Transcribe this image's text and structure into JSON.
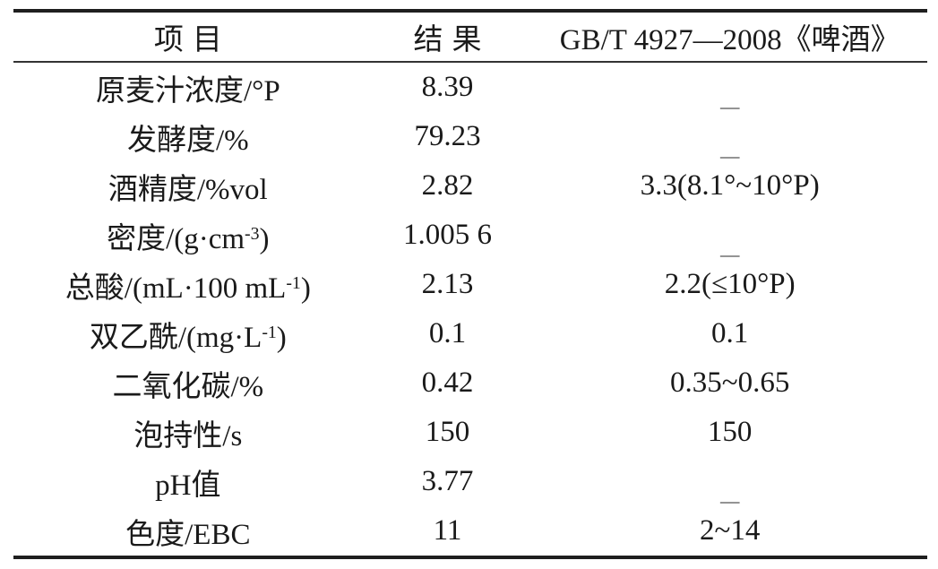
{
  "table": {
    "columns": [
      {
        "label": "项目"
      },
      {
        "label": "结果"
      },
      {
        "label": "GB/T 4927—2008《啤酒》"
      }
    ],
    "rows": [
      {
        "item_main": "原麦汁浓度/°P",
        "item_sup": "",
        "item_tail": "",
        "result": "8.39",
        "standard": "—"
      },
      {
        "item_main": "发酵度/%",
        "item_sup": "",
        "item_tail": "",
        "result": "79.23",
        "standard": "—"
      },
      {
        "item_main": "酒精度/%vol",
        "item_sup": "",
        "item_tail": "",
        "result": "2.82",
        "standard": "3.3(8.1°~10°P)"
      },
      {
        "item_main": "密度/(g·cm",
        "item_sup": "-3",
        "item_tail": ")",
        "result": "1.005 6",
        "standard": "—"
      },
      {
        "item_main": "总酸/(mL·100 mL",
        "item_sup": "-1",
        "item_tail": ")",
        "result": "2.13",
        "standard": "2.2(≤10°P)"
      },
      {
        "item_main": "双乙酰/(mg·L",
        "item_sup": "-1",
        "item_tail": ")",
        "result": "0.1",
        "standard": "0.1"
      },
      {
        "item_main": "二氧化碳/%",
        "item_sup": "",
        "item_tail": "",
        "result": "0.42",
        "standard": "0.35~0.65"
      },
      {
        "item_main": "泡持性/s",
        "item_sup": "",
        "item_tail": "",
        "result": "150",
        "standard": "150"
      },
      {
        "item_main": "pH值",
        "item_sup": "",
        "item_tail": "",
        "result": "3.77",
        "standard": "—"
      },
      {
        "item_main": "色度/EBC",
        "item_sup": "",
        "item_tail": "",
        "result": "11",
        "standard": "2~14"
      }
    ],
    "colors": {
      "text": "#1a1a1a",
      "rule_thick": "#1f1f1f",
      "rule_thin": "#333333",
      "background": "#ffffff"
    }
  }
}
